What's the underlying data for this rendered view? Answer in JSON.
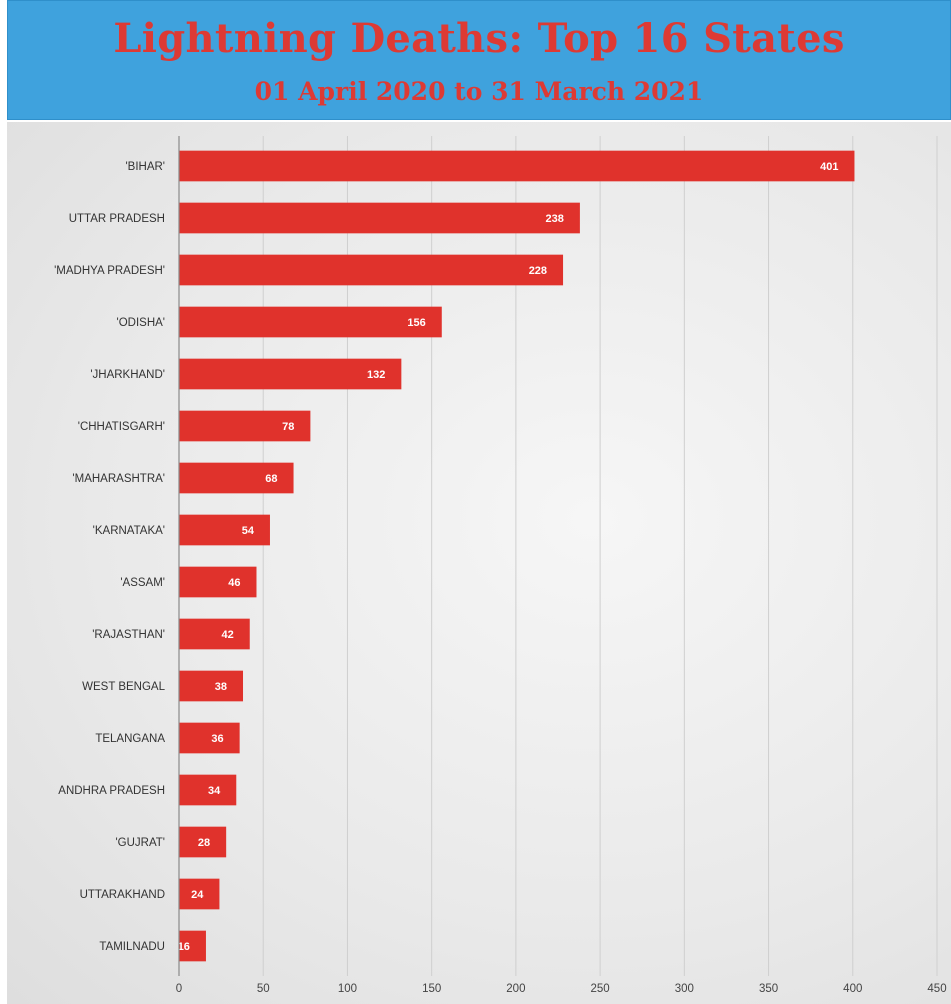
{
  "chart_data": {
    "type": "bar",
    "orientation": "horizontal",
    "title": "Lightning Deaths: Top 16 States",
    "subtitle": "01 April 2020 to 31 March 2021",
    "categories": [
      "'BIHAR'",
      "UTTAR PRADESH",
      "'MADHYA PRADESH'",
      "'ODISHA'",
      "'JHARKHAND'",
      "'CHHATISGARH'",
      "'MAHARASHTRA'",
      "'KARNATAKA'",
      "'ASSAM'",
      "'RAJASTHAN'",
      "WEST BENGAL",
      "TELANGANA",
      "ANDHRA PRADESH",
      "'GUJRAT'",
      "UTTARAKHAND",
      "TAMILNADU"
    ],
    "values": [
      401,
      238,
      228,
      156,
      132,
      78,
      68,
      54,
      46,
      42,
      38,
      36,
      34,
      28,
      24,
      16
    ],
    "value_labels": [
      "401",
      "238",
      "228",
      "156",
      "132",
      "78",
      "68",
      "54",
      "46",
      "42",
      "38",
      "36",
      "34",
      "28",
      "24",
      "16"
    ],
    "xlim": [
      0,
      450
    ],
    "xticks": [
      0,
      50,
      100,
      150,
      200,
      250,
      300,
      350,
      400,
      450
    ],
    "grid": true,
    "bar_color": "#e0322c",
    "header_color": "#3fa2dd",
    "title_color": "#dd3a34"
  }
}
